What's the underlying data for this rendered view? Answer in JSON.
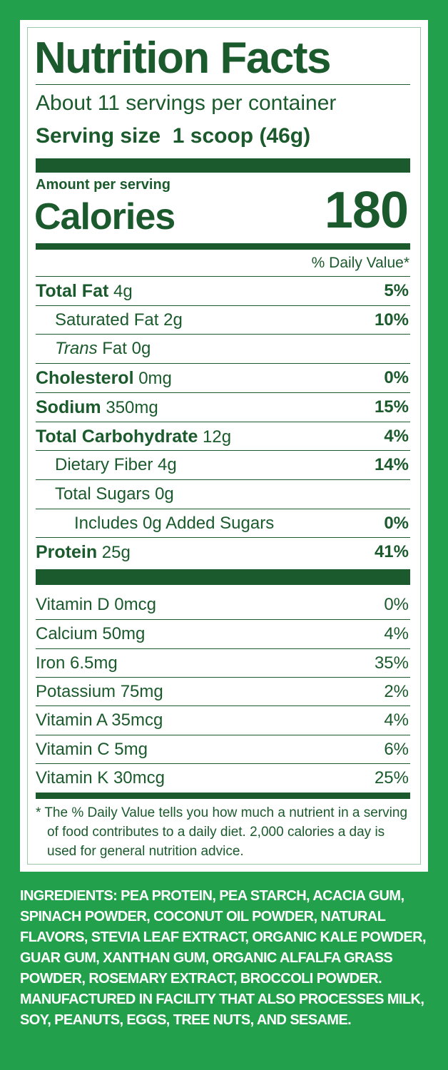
{
  "label": {
    "title": "Nutrition Facts",
    "servings": "About 11 servings per container",
    "serving_size_label": "Serving size",
    "serving_size": "1 scoop (46g)",
    "amount_per_serving": "Amount per serving",
    "calories_label": "Calories",
    "calories": "180",
    "daily_value_header": "% Daily Value*",
    "nutrients": [
      {
        "name": "Total Fat",
        "amount": "4g",
        "dv": "5%",
        "bold": true,
        "indent": 0
      },
      {
        "name": "Saturated Fat",
        "amount": "2g",
        "dv": "10%",
        "bold": false,
        "indent": 1
      },
      {
        "prefix": "Trans",
        "name": "Fat",
        "amount": "0g",
        "bold": false,
        "indent": 1
      },
      {
        "name": "Cholesterol",
        "amount": "0mg",
        "dv": "0%",
        "bold": true,
        "indent": 0
      },
      {
        "name": "Sodium",
        "amount": "350mg",
        "dv": "15%",
        "bold": true,
        "indent": 0
      },
      {
        "name": "Total Carbohydrate",
        "amount": "12g",
        "dv": "4%",
        "bold": true,
        "indent": 0
      },
      {
        "name": "Dietary Fiber",
        "amount": "4g",
        "dv": "14%",
        "bold": false,
        "indent": 1
      },
      {
        "name": "Total Sugars",
        "amount": "0g",
        "bold": false,
        "indent": 1
      },
      {
        "name": "Includes 0g Added Sugars",
        "dv": "0%",
        "bold": false,
        "indent": 2
      },
      {
        "name": "Protein",
        "amount": "25g",
        "dv": "41%",
        "bold": true,
        "indent": 0
      }
    ],
    "vitamins": [
      {
        "name": "Vitamin D 0mcg",
        "dv": "0%"
      },
      {
        "name": "Calcium 50mg",
        "dv": "4%"
      },
      {
        "name": "Iron 6.5mg",
        "dv": "35%"
      },
      {
        "name": "Potassium 75mg",
        "dv": "2%"
      },
      {
        "name": "Vitamin A 35mcg",
        "dv": "4%"
      },
      {
        "name": "Vitamin C 5mg",
        "dv": "6%"
      },
      {
        "name": "Vitamin K 30mcg",
        "dv": "25%"
      }
    ],
    "footnote": "* The % Daily Value tells you how much a nutrient in a serving of food contributes to a daily diet. 2,000 calories a day is used for general nutrition advice."
  },
  "ingredients": {
    "label": "INGREDIENTS:",
    "text": "PEA PROTEIN, PEA STARCH, ACACIA GUM, SPINACH POWDER, COCONUT OIL POWDER, NATURAL FLAVORS, STEVIA LEAF EXTRACT, ORGANIC KALE POWDER, GUAR GUM, XANTHAN GUM, ORGANIC ALFALFA GRASS POWDER, ROSEMARY EXTRACT, BROCCOLI POWDER.",
    "allergens": "MANUFACTURED IN FACILITY THAT ALSO PROCESSES MILK, SOY, PEANUTS, EGGS, TREE NUTS, AND SESAME."
  }
}
